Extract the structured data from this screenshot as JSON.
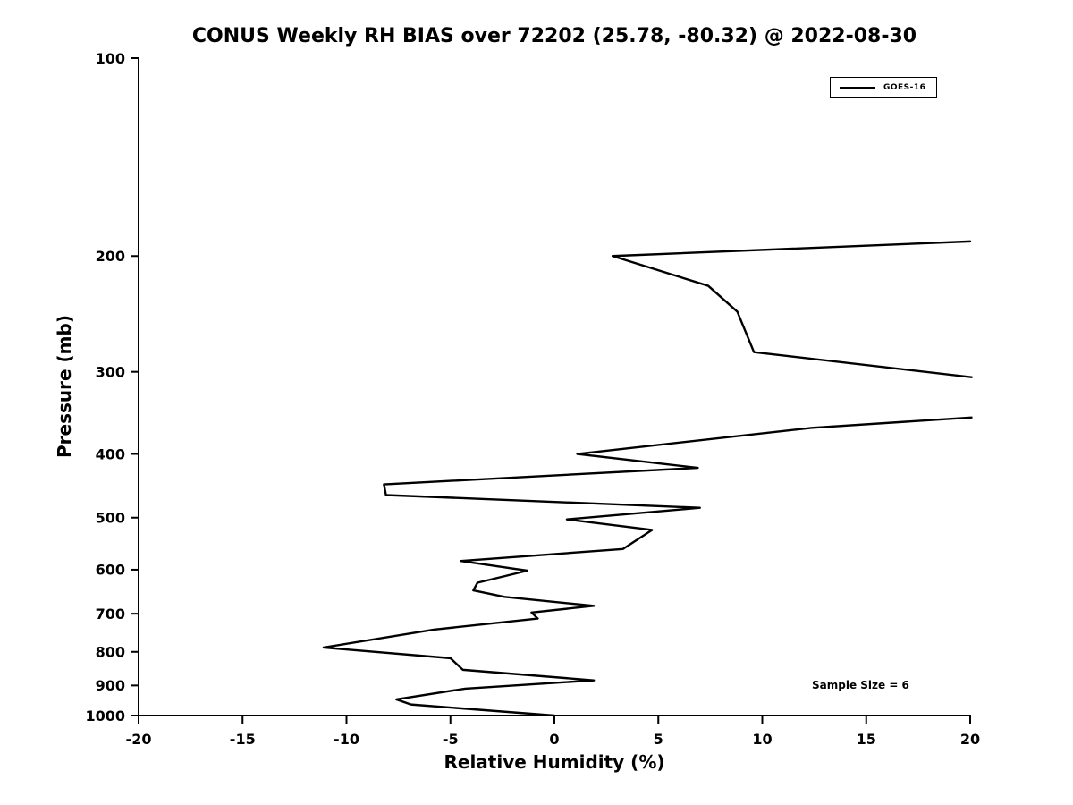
{
  "colors": {
    "line": "#000000",
    "text": "#000000",
    "background": "#ffffff",
    "spine": "#000000"
  },
  "chart_data": {
    "type": "line",
    "title": "CONUS Weekly RH BIAS over 72202 (25.78, -80.32) @ 2022-08-30",
    "xlabel": "Relative Humidity (%)",
    "ylabel": "Pressure (mb)",
    "xlim": [
      -20,
      20
    ],
    "ylim": [
      100,
      1000
    ],
    "yscale": "log",
    "y_inverted": true,
    "grid": false,
    "xticks": [
      -20,
      -15,
      -10,
      -5,
      0,
      5,
      10,
      15,
      20
    ],
    "yticks": [
      100,
      200,
      300,
      400,
      500,
      600,
      700,
      800,
      900,
      1000
    ],
    "legend": {
      "position": "top-right",
      "entries": [
        {
          "label": "GOES-16",
          "color": "#000000",
          "line_style": "solid"
        }
      ]
    },
    "annotation": "Sample Size = 6",
    "clip_note": "RH values greater than 20 are clipped at the right axis limit near 310-350 mb",
    "series": [
      {
        "name": "GOES-16",
        "color": "#000000",
        "points_format": [
          "rh_percent",
          "pressure_mb"
        ],
        "points": [
          [
            20.0,
            190
          ],
          [
            2.8,
            200
          ],
          [
            7.4,
            222
          ],
          [
            8.8,
            243
          ],
          [
            9.6,
            280
          ],
          [
            22.5,
            312
          ],
          [
            22.5,
            348
          ],
          [
            12.4,
            365
          ],
          [
            1.1,
            400
          ],
          [
            6.9,
            420
          ],
          [
            -8.2,
            445
          ],
          [
            -8.1,
            462
          ],
          [
            7.0,
            483
          ],
          [
            0.6,
            503
          ],
          [
            4.7,
            522
          ],
          [
            3.3,
            558
          ],
          [
            -4.5,
            582
          ],
          [
            -1.3,
            602
          ],
          [
            -3.7,
            628
          ],
          [
            -3.9,
            645
          ],
          [
            -2.4,
            660
          ],
          [
            1.9,
            681
          ],
          [
            -1.1,
            697
          ],
          [
            -0.8,
            712
          ],
          [
            -5.8,
            740
          ],
          [
            -11.1,
            788
          ],
          [
            -5.0,
            818
          ],
          [
            -4.4,
            852
          ],
          [
            1.9,
            884
          ],
          [
            -4.3,
            910
          ],
          [
            -7.6,
            945
          ],
          [
            -6.9,
            962
          ],
          [
            0.0,
            1000
          ]
        ]
      }
    ]
  }
}
